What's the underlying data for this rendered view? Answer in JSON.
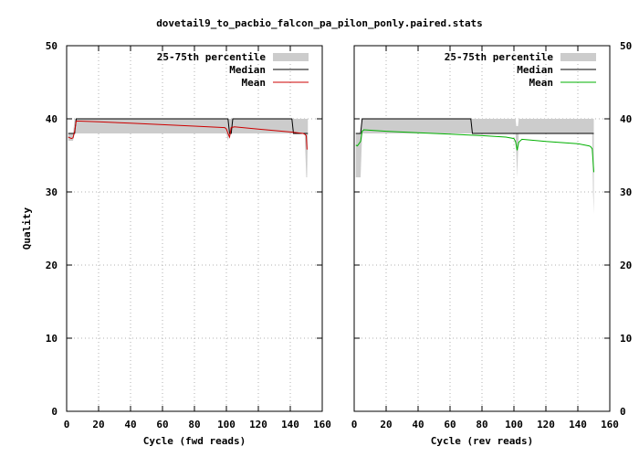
{
  "chart_data": {
    "title": "dovetail9_to_pacbio_falcon_pa_pilon_ponly.paired.stats",
    "type": "line",
    "panels": [
      {
        "xlabel": "Cycle (fwd reads)",
        "ylabel": "Quality",
        "xlim": [
          0,
          160
        ],
        "ylim": [
          0,
          50
        ],
        "xticks": [
          0,
          20,
          40,
          60,
          80,
          100,
          120,
          140,
          160
        ],
        "yticks": [
          0,
          10,
          20,
          30,
          40,
          50
        ],
        "grid": true,
        "legend": "top-right",
        "legend_entries": [
          "25-75th percentile",
          "Median",
          "Mean"
        ],
        "series": [
          {
            "name": "25-75th percentile",
            "color": "#cccccc",
            "type": "band",
            "x": [
              1,
              4,
              5,
              6,
              100,
              101,
              102,
              103,
              141,
              142,
              149,
              149.5,
              150,
              150.5,
              151
            ],
            "lower": [
              37,
              37,
              38,
              38,
              38,
              37,
              38,
              38,
              38,
              38,
              38,
              35,
              32,
              32,
              38
            ],
            "upper": [
              38,
              38,
              40,
              40,
              40,
              40,
              40,
              40,
              40,
              40,
              40,
              40,
              40,
              40,
              40
            ]
          },
          {
            "name": "Median",
            "color": "#000000",
            "x": [
              1,
              5,
              6,
              101,
              102,
              103,
              104,
              141,
              142,
              150,
              151
            ],
            "y": [
              38,
              38,
              40,
              40,
              38,
              38,
              40,
              40,
              38,
              38,
              38
            ]
          },
          {
            "name": "Mean",
            "color": "#cc0000",
            "x": [
              1,
              2,
              3,
              4,
              5,
              6,
              20,
              40,
              60,
              80,
              99,
              100,
              101,
              102,
              103,
              105,
              120,
              140,
              148,
              149,
              150,
              150.5
            ],
            "y": [
              37.5,
              37.4,
              37.3,
              37.4,
              38.3,
              39.7,
              39.6,
              39.4,
              39.2,
              39.0,
              38.8,
              38.6,
              38.0,
              37.5,
              38.8,
              38.9,
              38.6,
              38.2,
              38.0,
              37.9,
              37.7,
              35.8
            ]
          }
        ]
      },
      {
        "xlabel": "Cycle (rev reads)",
        "ylabel": "",
        "xlim": [
          0,
          160
        ],
        "ylim": [
          0,
          50
        ],
        "xticks": [
          0,
          20,
          40,
          60,
          80,
          100,
          120,
          140,
          160
        ],
        "yticks": [
          0,
          10,
          20,
          30,
          40,
          50
        ],
        "grid": true,
        "legend": "top-right",
        "legend_entries": [
          "25-75th percentile",
          "Median",
          "Mean"
        ],
        "series": [
          {
            "name": "25-75th percentile",
            "color": "#cccccc",
            "type": "band",
            "x": [
              1,
              4,
              5,
              6,
              101,
              101.5,
              102,
              102.5,
              103,
              148,
              149,
              149.5,
              150
            ],
            "lower": [
              32,
              32,
              38,
              38,
              38,
              35,
              32,
              35,
              38,
              38,
              38,
              30,
              27
            ],
            "upper": [
              38,
              38,
              40,
              40,
              40,
              39,
              39,
              39,
              40,
              40,
              40,
              40,
              40
            ]
          },
          {
            "name": "Median",
            "color": "#000000",
            "x": [
              1,
              4,
              5,
              73,
              74,
              150
            ],
            "y": [
              38,
              38,
              40,
              40,
              38,
              38
            ]
          },
          {
            "name": "Mean",
            "color": "#00b000",
            "x": [
              1,
              2,
              3,
              4,
              5,
              6,
              20,
              40,
              60,
              80,
              95,
              100,
              101,
              102,
              103,
              105,
              120,
              140,
              147,
              148,
              149,
              150
            ],
            "y": [
              36.4,
              36.3,
              36.6,
              36.9,
              38.3,
              38.5,
              38.3,
              38.1,
              37.9,
              37.7,
              37.5,
              37.3,
              36.9,
              35.7,
              36.8,
              37.2,
              36.9,
              36.6,
              36.3,
              36.2,
              35.9,
              32.7
            ]
          }
        ]
      }
    ]
  }
}
